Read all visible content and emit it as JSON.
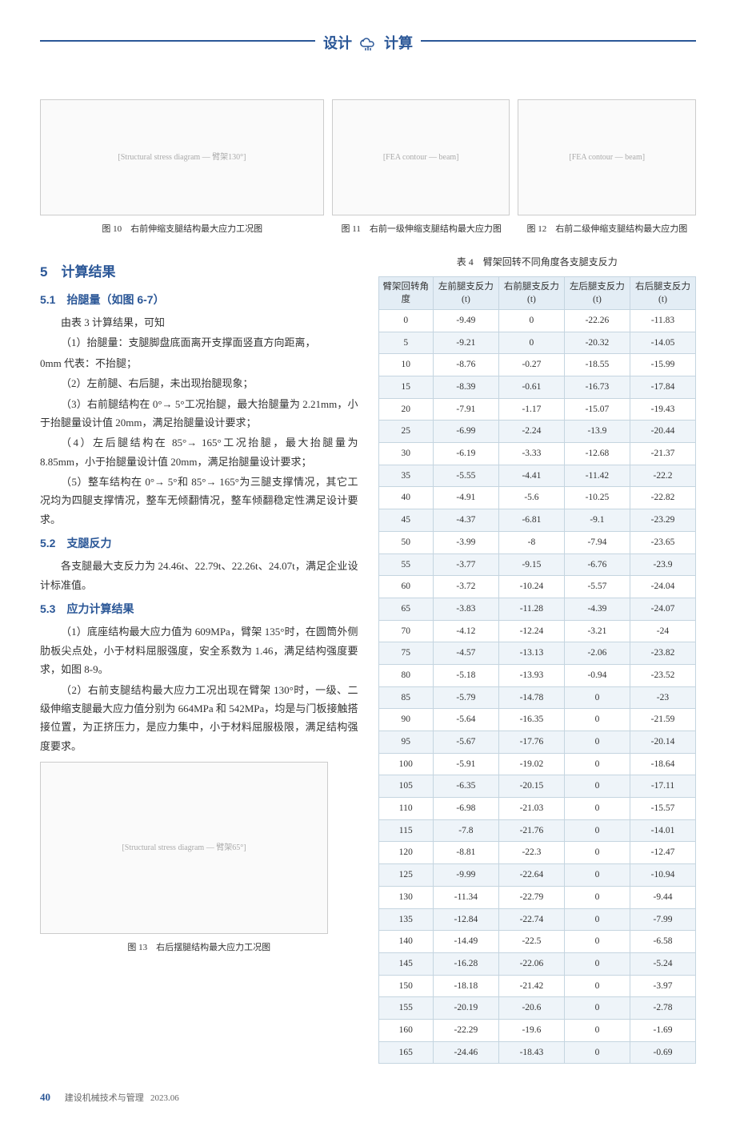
{
  "header": {
    "left": "设计",
    "right": "计算"
  },
  "figures_top": {
    "fig10": {
      "placeholder": "[Structural stress diagram — 臂架130°]",
      "caption": "图 10　右前伸缩支腿结构最大应力工况图"
    },
    "fig11": {
      "placeholder": "[FEA contour — beam]",
      "caption": "图 11　右前一级伸缩支腿结构最大应力图"
    },
    "fig12": {
      "placeholder": "[FEA contour — beam]",
      "caption": "图 12　右前二级伸缩支腿结构最大应力图"
    }
  },
  "section5": {
    "title": "5　计算结果",
    "s51": {
      "title": "5.1　抬腿量（如图 6-7）",
      "p0": "由表 3 计算结果，可知",
      "p1": "（1）抬腿量：支腿脚盘底面离开支撑面竖直方向距离，",
      "p1b": "0mm 代表：不抬腿；",
      "p2": "（2）左前腿、右后腿，未出现抬腿现象；",
      "p3": "（3）右前腿结构在 0°→ 5°工况抬腿，最大抬腿量为 2.21mm，小于抬腿量设计值 20mm，满足抬腿量设计要求；",
      "p4": "（4）左后腿结构在 85°→ 165°工况抬腿，最大抬腿量为 8.85mm，小于抬腿量设计值 20mm，满足抬腿量设计要求；",
      "p5": "（5）整车结构在 0°→ 5°和 85°→ 165°为三腿支撑情况，其它工况均为四腿支撑情况，整车无倾翻情况，整车倾翻稳定性满足设计要求。"
    },
    "s52": {
      "title": "5.2　支腿反力",
      "p1": "各支腿最大支反力为 24.46t、22.79t、22.26t、24.07t，满足企业设计标准值。"
    },
    "s53": {
      "title": "5.3　应力计算结果",
      "p1": "（1）底座结构最大应力值为 609MPa，臂架 135°时，在圆筒外侧肋板尖点处，小于材料屈服强度，安全系数为 1.46，满足结构强度要求，如图 8-9。",
      "p2": "（2）右前支腿结构最大应力工况出现在臂架 130°时，一级、二级伸缩支腿最大应力值分别为 664MPa 和 542MPa，均是与门板接触搭接位置，为正挤压力，是应力集中，小于材料屈服极限，满足结构强度要求。"
    }
  },
  "fig13": {
    "placeholder": "[Structural stress diagram — 臂架65°]",
    "caption": "图 13　右后摆腿结构最大应力工况图"
  },
  "table4": {
    "title": "表 4　臂架回转不同角度各支腿支反力",
    "headers": {
      "c0": "臂架回转角度",
      "c1": "左前腿支反力 (t)",
      "c2": "右前腿支反力 (t)",
      "c3": "左后腿支反力 (t)",
      "c4": "右后腿支反力 (t)"
    },
    "rows": [
      [
        "0",
        "-9.49",
        "0",
        "-22.26",
        "-11.83"
      ],
      [
        "5",
        "-9.21",
        "0",
        "-20.32",
        "-14.05"
      ],
      [
        "10",
        "-8.76",
        "-0.27",
        "-18.55",
        "-15.99"
      ],
      [
        "15",
        "-8.39",
        "-0.61",
        "-16.73",
        "-17.84"
      ],
      [
        "20",
        "-7.91",
        "-1.17",
        "-15.07",
        "-19.43"
      ],
      [
        "25",
        "-6.99",
        "-2.24",
        "-13.9",
        "-20.44"
      ],
      [
        "30",
        "-6.19",
        "-3.33",
        "-12.68",
        "-21.37"
      ],
      [
        "35",
        "-5.55",
        "-4.41",
        "-11.42",
        "-22.2"
      ],
      [
        "40",
        "-4.91",
        "-5.6",
        "-10.25",
        "-22.82"
      ],
      [
        "45",
        "-4.37",
        "-6.81",
        "-9.1",
        "-23.29"
      ],
      [
        "50",
        "-3.99",
        "-8",
        "-7.94",
        "-23.65"
      ],
      [
        "55",
        "-3.77",
        "-9.15",
        "-6.76",
        "-23.9"
      ],
      [
        "60",
        "-3.72",
        "-10.24",
        "-5.57",
        "-24.04"
      ],
      [
        "65",
        "-3.83",
        "-11.28",
        "-4.39",
        "-24.07"
      ],
      [
        "70",
        "-4.12",
        "-12.24",
        "-3.21",
        "-24"
      ],
      [
        "75",
        "-4.57",
        "-13.13",
        "-2.06",
        "-23.82"
      ],
      [
        "80",
        "-5.18",
        "-13.93",
        "-0.94",
        "-23.52"
      ],
      [
        "85",
        "-5.79",
        "-14.78",
        "0",
        "-23"
      ],
      [
        "90",
        "-5.64",
        "-16.35",
        "0",
        "-21.59"
      ],
      [
        "95",
        "-5.67",
        "-17.76",
        "0",
        "-20.14"
      ],
      [
        "100",
        "-5.91",
        "-19.02",
        "0",
        "-18.64"
      ],
      [
        "105",
        "-6.35",
        "-20.15",
        "0",
        "-17.11"
      ],
      [
        "110",
        "-6.98",
        "-21.03",
        "0",
        "-15.57"
      ],
      [
        "115",
        "-7.8",
        "-21.76",
        "0",
        "-14.01"
      ],
      [
        "120",
        "-8.81",
        "-22.3",
        "0",
        "-12.47"
      ],
      [
        "125",
        "-9.99",
        "-22.64",
        "0",
        "-10.94"
      ],
      [
        "130",
        "-11.34",
        "-22.79",
        "0",
        "-9.44"
      ],
      [
        "135",
        "-12.84",
        "-22.74",
        "0",
        "-7.99"
      ],
      [
        "140",
        "-14.49",
        "-22.5",
        "0",
        "-6.58"
      ],
      [
        "145",
        "-16.28",
        "-22.06",
        "0",
        "-5.24"
      ],
      [
        "150",
        "-18.18",
        "-21.42",
        "0",
        "-3.97"
      ],
      [
        "155",
        "-20.19",
        "-20.6",
        "0",
        "-2.78"
      ],
      [
        "160",
        "-22.29",
        "-19.6",
        "0",
        "-1.69"
      ],
      [
        "165",
        "-24.46",
        "-18.43",
        "0",
        "-0.69"
      ]
    ]
  },
  "footer": {
    "pagenum": "40",
    "pub": "建设机械技术与管理",
    "issue": "2023.06"
  },
  "colors": {
    "accent": "#2b5797",
    "header_bg": "#e3edf5",
    "row_alt_bg": "#eef4f9",
    "border": "#c5d5e0"
  }
}
